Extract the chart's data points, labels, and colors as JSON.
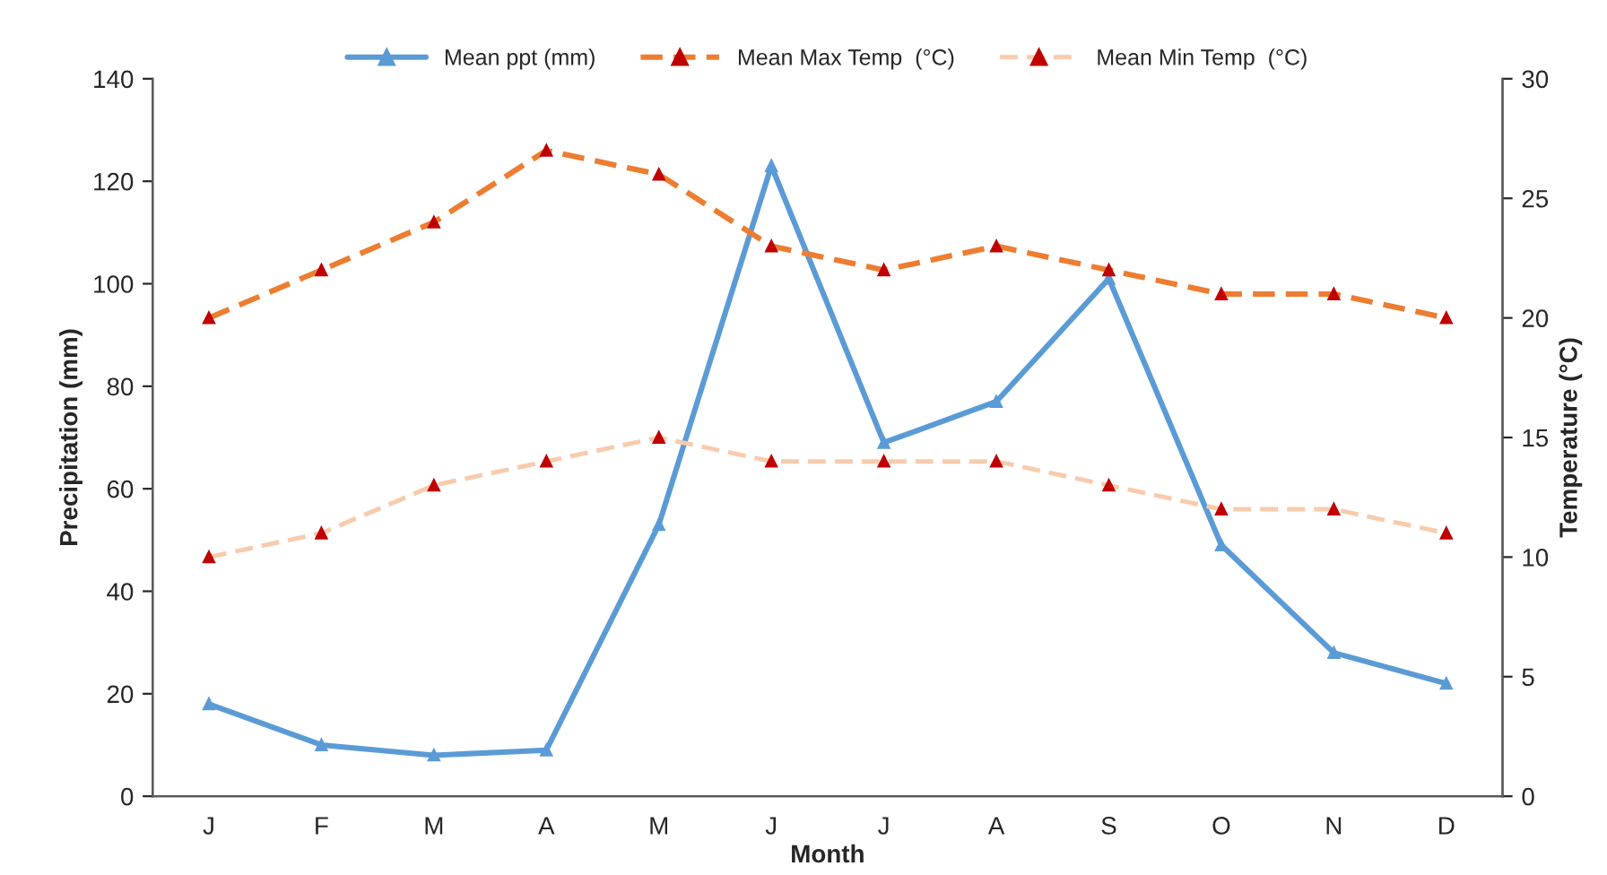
{
  "chart_data": {
    "type": "line",
    "xlabel": "Month",
    "ylabel": "Precipitation (mm)",
    "y2label": "Temperature (°C)",
    "categories": [
      "J",
      "F",
      "M",
      "A",
      "M",
      "J",
      "J",
      "A",
      "S",
      "O",
      "N",
      "D"
    ],
    "series": [
      {
        "name": "Mean ppt (mm)",
        "color": "#5b9bd5",
        "values": [
          18,
          10,
          8,
          9,
          53,
          123,
          69,
          77,
          101,
          49,
          28,
          22
        ],
        "line_style": "solid"
      },
      {
        "name": "Mean Max Temp  (°C)",
        "color": "#ed7d31",
        "values": [
          20,
          22,
          24,
          27,
          26,
          23,
          22,
          23,
          22,
          21,
          21,
          20
        ],
        "axis": "y2",
        "line_style": "dashed"
      },
      {
        "name": "Mean Min Temp  (°C)",
        "color": "#f8cbad",
        "values": [
          10,
          11,
          13,
          14,
          15,
          14,
          14,
          14,
          13,
          12,
          12,
          11
        ],
        "axis": "y2",
        "line_style": "dashed"
      }
    ],
    "ylim": [
      0,
      140
    ],
    "yticks": [
      0,
      20,
      40,
      60,
      80,
      100,
      120,
      140
    ],
    "y2lim": [
      0,
      30
    ],
    "y2ticks": [
      0,
      5,
      10,
      15,
      20,
      25,
      30
    ],
    "marker": "triangle",
    "grid": false,
    "legend": "top"
  }
}
